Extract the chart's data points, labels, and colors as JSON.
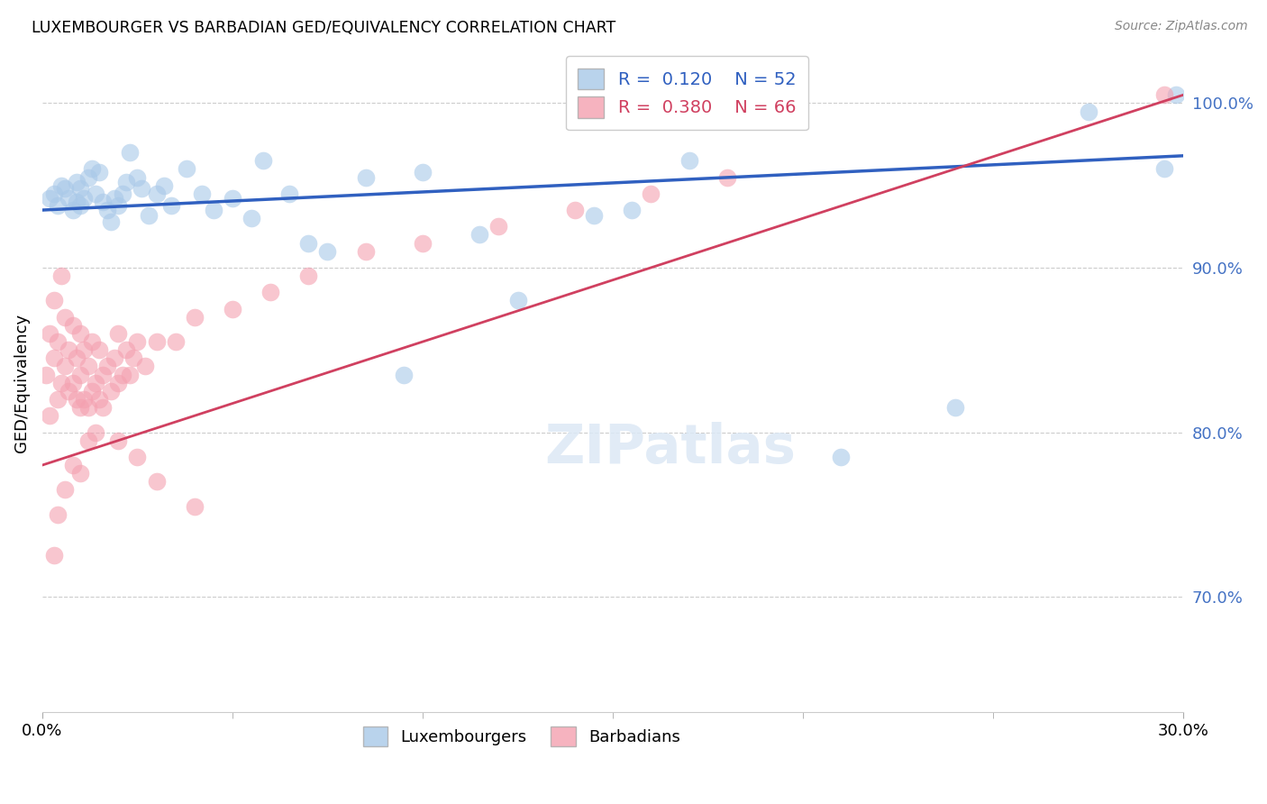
{
  "title": "LUXEMBOURGER VS BARBADIAN GED/EQUIVALENCY CORRELATION CHART",
  "source": "Source: ZipAtlas.com",
  "ylabel": "GED/Equivalency",
  "xlim": [
    0.0,
    30.0
  ],
  "ylim": [
    63.0,
    103.0
  ],
  "yticks": [
    70.0,
    80.0,
    90.0,
    100.0
  ],
  "ytick_labels": [
    "70.0%",
    "80.0%",
    "90.0%",
    "100.0%"
  ],
  "blue_R": "0.120",
  "blue_N": "52",
  "pink_R": "0.380",
  "pink_N": "66",
  "blue_color": "#a8c8e8",
  "pink_color": "#f4a0b0",
  "blue_line_color": "#3060c0",
  "pink_line_color": "#d04060",
  "legend_blue_label": "Luxembourgers",
  "legend_pink_label": "Barbadians",
  "blue_x": [
    0.2,
    0.3,
    0.4,
    0.5,
    0.6,
    0.7,
    0.8,
    0.9,
    0.9,
    1.0,
    1.0,
    1.1,
    1.2,
    1.3,
    1.4,
    1.5,
    1.6,
    1.7,
    1.8,
    1.9,
    2.0,
    2.1,
    2.2,
    2.3,
    2.5,
    2.6,
    2.8,
    3.0,
    3.2,
    3.4,
    3.8,
    4.2,
    5.0,
    5.5,
    6.5,
    7.5,
    8.5,
    10.0,
    12.5,
    14.5,
    17.0,
    21.0,
    24.0,
    27.5,
    29.5,
    29.8,
    4.5,
    5.8,
    7.0,
    9.5,
    11.5,
    15.5
  ],
  "blue_y": [
    94.2,
    94.5,
    93.8,
    95.0,
    94.8,
    94.2,
    93.5,
    94.0,
    95.2,
    93.8,
    94.8,
    94.2,
    95.5,
    96.0,
    94.5,
    95.8,
    94.0,
    93.5,
    92.8,
    94.2,
    93.8,
    94.5,
    95.2,
    97.0,
    95.5,
    94.8,
    93.2,
    94.5,
    95.0,
    93.8,
    96.0,
    94.5,
    94.2,
    93.0,
    94.5,
    91.0,
    95.5,
    95.8,
    88.0,
    93.2,
    96.5,
    78.5,
    81.5,
    99.5,
    96.0,
    100.5,
    93.5,
    96.5,
    91.5,
    83.5,
    92.0,
    93.5
  ],
  "pink_x": [
    0.1,
    0.2,
    0.2,
    0.3,
    0.3,
    0.4,
    0.4,
    0.5,
    0.5,
    0.6,
    0.6,
    0.7,
    0.7,
    0.8,
    0.8,
    0.9,
    0.9,
    1.0,
    1.0,
    1.0,
    1.1,
    1.1,
    1.2,
    1.2,
    1.3,
    1.3,
    1.4,
    1.5,
    1.5,
    1.6,
    1.7,
    1.8,
    1.9,
    2.0,
    2.0,
    2.1,
    2.2,
    2.3,
    2.4,
    2.5,
    2.7,
    3.0,
    3.5,
    4.0,
    5.0,
    6.0,
    7.0,
    8.5,
    10.0,
    12.0,
    14.0,
    16.0,
    18.0,
    29.5,
    0.3,
    0.4,
    0.6,
    0.8,
    1.0,
    1.2,
    1.4,
    1.6,
    2.0,
    2.5,
    3.0,
    4.0
  ],
  "pink_y": [
    83.5,
    81.0,
    86.0,
    84.5,
    88.0,
    82.0,
    85.5,
    83.0,
    89.5,
    84.0,
    87.0,
    82.5,
    85.0,
    83.0,
    86.5,
    82.0,
    84.5,
    81.5,
    83.5,
    86.0,
    82.0,
    85.0,
    81.5,
    84.0,
    82.5,
    85.5,
    83.0,
    82.0,
    85.0,
    83.5,
    84.0,
    82.5,
    84.5,
    83.0,
    86.0,
    83.5,
    85.0,
    83.5,
    84.5,
    85.5,
    84.0,
    85.5,
    85.5,
    87.0,
    87.5,
    88.5,
    89.5,
    91.0,
    91.5,
    92.5,
    93.5,
    94.5,
    95.5,
    100.5,
    72.5,
    75.0,
    76.5,
    78.0,
    77.5,
    79.5,
    80.0,
    81.5,
    79.5,
    78.5,
    77.0,
    75.5
  ],
  "blue_line_x0": 0.0,
  "blue_line_y0": 93.5,
  "blue_line_x1": 30.0,
  "blue_line_y1": 96.8,
  "pink_line_x0": 0.0,
  "pink_line_y0": 78.0,
  "pink_line_x1": 30.0,
  "pink_line_y1": 100.5
}
